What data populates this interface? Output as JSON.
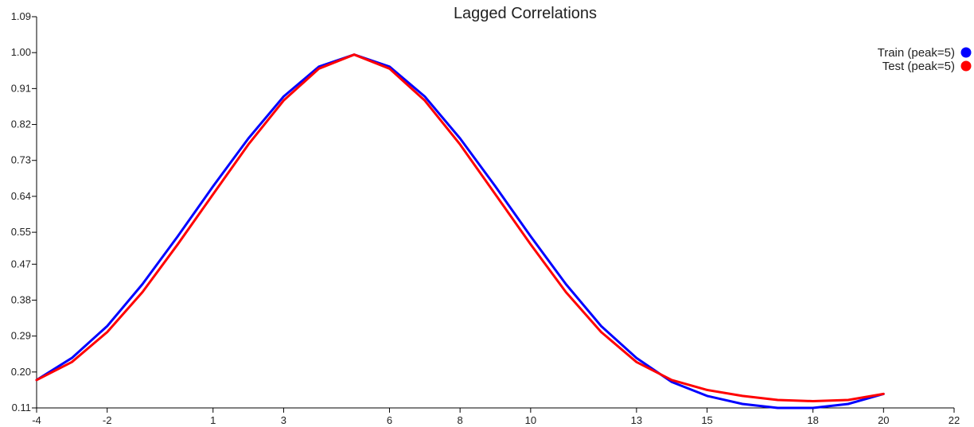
{
  "chart_data": {
    "type": "line",
    "title": "Lagged Correlations",
    "xlabel": "",
    "ylabel": "",
    "xlim": [
      -4,
      22
    ],
    "ylim": [
      0.11,
      1.09
    ],
    "x_ticks": [
      "-4",
      "-2",
      "1",
      "3",
      "6",
      "8",
      "10",
      "13",
      "15",
      "18",
      "20",
      "22"
    ],
    "x_tick_values": [
      -4,
      -2,
      1,
      3,
      6,
      8,
      10,
      13,
      15,
      18,
      20,
      22
    ],
    "y_ticks": [
      "0.11",
      "0.20",
      "0.29",
      "0.38",
      "0.47",
      "0.55",
      "0.64",
      "0.73",
      "0.82",
      "0.91",
      "1.00",
      "1.09"
    ],
    "y_tick_values": [
      0.11,
      0.2,
      0.29,
      0.38,
      0.47,
      0.55,
      0.64,
      0.73,
      0.82,
      0.91,
      1.0,
      1.09
    ],
    "x": [
      -4,
      -3,
      -2,
      -1,
      0,
      1,
      2,
      3,
      4,
      5,
      6,
      7,
      8,
      9,
      10,
      11,
      12,
      13,
      14,
      15,
      16,
      17,
      18,
      19,
      20
    ],
    "series": [
      {
        "name": "Train (peak=5)",
        "color": "#0000ff",
        "values": [
          0.18,
          0.235,
          0.315,
          0.42,
          0.54,
          0.665,
          0.785,
          0.89,
          0.965,
          0.995,
          0.965,
          0.89,
          0.785,
          0.665,
          0.54,
          0.42,
          0.315,
          0.235,
          0.175,
          0.14,
          0.12,
          0.11,
          0.11,
          0.12,
          0.145
        ]
      },
      {
        "name": "Test (peak=5)",
        "color": "#ff0000",
        "values": [
          0.18,
          0.225,
          0.3,
          0.4,
          0.52,
          0.645,
          0.77,
          0.88,
          0.96,
          0.995,
          0.96,
          0.88,
          0.77,
          0.645,
          0.52,
          0.4,
          0.3,
          0.225,
          0.18,
          0.155,
          0.14,
          0.13,
          0.127,
          0.13,
          0.145
        ]
      }
    ],
    "grid": false,
    "legend_position": "top-right"
  }
}
